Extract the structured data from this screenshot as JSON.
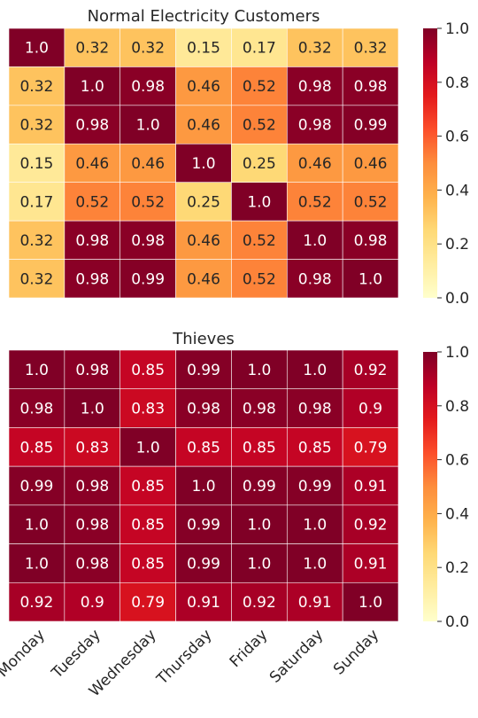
{
  "chart_data": [
    {
      "type": "heatmap",
      "title": "Normal Electricity Customers",
      "xlabel": "",
      "ylabel": "",
      "categories": [
        "Monday",
        "Tuesday",
        "Wednesday",
        "Thursday",
        "Friday",
        "Saturday",
        "Sunday"
      ],
      "show_x_tick_labels": false,
      "show_y_tick_labels": false,
      "values": [
        [
          1.0,
          0.32,
          0.32,
          0.15,
          0.17,
          0.32,
          0.32
        ],
        [
          0.32,
          1.0,
          0.98,
          0.46,
          0.52,
          0.98,
          0.98
        ],
        [
          0.32,
          0.98,
          1.0,
          0.46,
          0.52,
          0.98,
          0.99
        ],
        [
          0.15,
          0.46,
          0.46,
          1.0,
          0.25,
          0.46,
          0.46
        ],
        [
          0.17,
          0.52,
          0.52,
          0.25,
          1.0,
          0.52,
          0.52
        ],
        [
          0.32,
          0.98,
          0.98,
          0.46,
          0.52,
          1.0,
          0.98
        ],
        [
          0.32,
          0.98,
          0.99,
          0.46,
          0.52,
          0.98,
          1.0
        ]
      ],
      "value_labels": [
        [
          "1.0",
          "0.32",
          "0.32",
          "0.15",
          "0.17",
          "0.32",
          "0.32"
        ],
        [
          "0.32",
          "1.0",
          "0.98",
          "0.46",
          "0.52",
          "0.98",
          "0.98"
        ],
        [
          "0.32",
          "0.98",
          "1.0",
          "0.46",
          "0.52",
          "0.98",
          "0.99"
        ],
        [
          "0.15",
          "0.46",
          "0.46",
          "1.0",
          "0.25",
          "0.46",
          "0.46"
        ],
        [
          "0.17",
          "0.52",
          "0.52",
          "0.25",
          "1.0",
          "0.52",
          "0.52"
        ],
        [
          "0.32",
          "0.98",
          "0.98",
          "0.46",
          "0.52",
          "1.0",
          "0.98"
        ],
        [
          "0.32",
          "0.98",
          "0.99",
          "0.46",
          "0.52",
          "0.98",
          "1.0"
        ]
      ],
      "colorbar": {
        "range": [
          0.0,
          1.0
        ],
        "ticks": [
          "0.0",
          "0.2",
          "0.4",
          "0.6",
          "0.8",
          "1.0"
        ]
      },
      "colormap": "YlOrRd",
      "grid": true
    },
    {
      "type": "heatmap",
      "title": "Thieves",
      "xlabel": "",
      "ylabel": "",
      "categories": [
        "Monday",
        "Tuesday",
        "Wednesday",
        "Thursday",
        "Friday",
        "Saturday",
        "Sunday"
      ],
      "show_x_tick_labels": true,
      "show_y_tick_labels": false,
      "values": [
        [
          1.0,
          0.98,
          0.85,
          0.99,
          1.0,
          1.0,
          0.92
        ],
        [
          0.98,
          1.0,
          0.83,
          0.98,
          0.98,
          0.98,
          0.9
        ],
        [
          0.85,
          0.83,
          1.0,
          0.85,
          0.85,
          0.85,
          0.79
        ],
        [
          0.99,
          0.98,
          0.85,
          1.0,
          0.99,
          0.99,
          0.91
        ],
        [
          1.0,
          0.98,
          0.85,
          0.99,
          1.0,
          1.0,
          0.92
        ],
        [
          1.0,
          0.98,
          0.85,
          0.99,
          1.0,
          1.0,
          0.91
        ],
        [
          0.92,
          0.9,
          0.79,
          0.91,
          0.92,
          0.91,
          1.0
        ]
      ],
      "value_labels": [
        [
          "1.0",
          "0.98",
          "0.85",
          "0.99",
          "1.0",
          "1.0",
          "0.92"
        ],
        [
          "0.98",
          "1.0",
          "0.83",
          "0.98",
          "0.98",
          "0.98",
          "0.9"
        ],
        [
          "0.85",
          "0.83",
          "1.0",
          "0.85",
          "0.85",
          "0.85",
          "0.79"
        ],
        [
          "0.99",
          "0.98",
          "0.85",
          "1.0",
          "0.99",
          "0.99",
          "0.91"
        ],
        [
          "1.0",
          "0.98",
          "0.85",
          "0.99",
          "1.0",
          "1.0",
          "0.92"
        ],
        [
          "1.0",
          "0.98",
          "0.85",
          "0.99",
          "1.0",
          "1.0",
          "0.91"
        ],
        [
          "0.92",
          "0.9",
          "0.79",
          "0.91",
          "0.92",
          "0.91",
          "1.0"
        ]
      ],
      "colorbar": {
        "range": [
          0.0,
          1.0
        ],
        "ticks": [
          "0.0",
          "0.2",
          "0.4",
          "0.6",
          "0.8",
          "1.0"
        ]
      },
      "colormap": "YlOrRd",
      "grid": true
    }
  ]
}
